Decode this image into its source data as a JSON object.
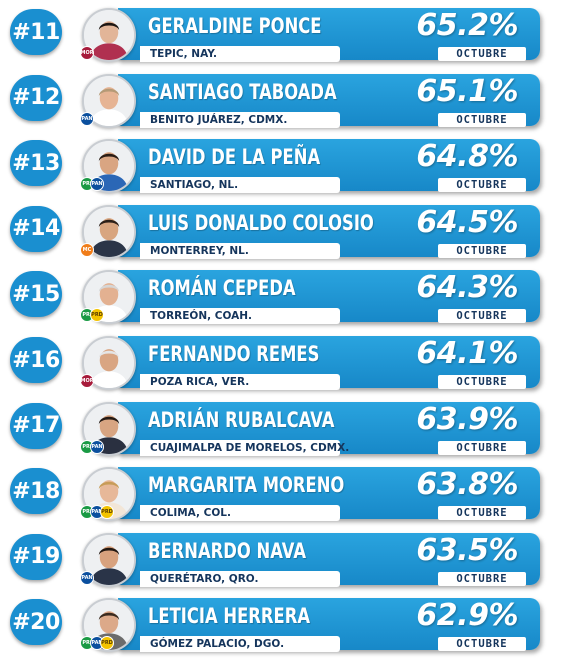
{
  "rows": [
    {
      "rank": "#11",
      "name": "GERALDINE PONCE",
      "city": "TEPIC, NAY.",
      "pct": "65.2%",
      "month": "OCTUBRE",
      "party_icons": [
        "morena-logo"
      ],
      "hair": "#1d1612",
      "shirt": "#b03050",
      "skin": "#e2b598"
    },
    {
      "rank": "#12",
      "name": "SANTIAGO TABOADA",
      "city": "BENITO JUÁREZ, CDMX.",
      "pct": "65.1%",
      "month": "OCTUBRE",
      "party_icons": [
        "pan-logo"
      ],
      "hair": "#b59a76",
      "shirt": "#ffffff",
      "skin": "#e6b494"
    },
    {
      "rank": "#13",
      "name": "DAVID DE LA PEÑA",
      "city": "SANTIAGO, NL.",
      "pct": "64.8%",
      "month": "OCTUBRE",
      "party_icons": [
        "pri-logo",
        "pan-logo"
      ],
      "hair": "#2a1c14",
      "shirt": "#2b67b6",
      "skin": "#d9a582"
    },
    {
      "rank": "#14",
      "name": "LUIS DONALDO COLOSIO",
      "city": "MONTERREY, NL.",
      "pct": "64.5%",
      "month": "OCTUBRE",
      "party_icons": [
        "mc-logo"
      ],
      "hair": "#2b1f18",
      "shirt": "#2b3548",
      "skin": "#d8a57f"
    },
    {
      "rank": "#15",
      "name": "ROMÁN CEPEDA",
      "city": "TORREÓN, COAH.",
      "pct": "64.3%",
      "month": "OCTUBRE",
      "party_icons": [
        "pri-logo",
        "prd-logo"
      ],
      "hair": "#d6d6d6",
      "shirt": "#ffffff",
      "skin": "#e3b191"
    },
    {
      "rank": "#16",
      "name": "FERNANDO REMES",
      "city": "POZA RICA, VER.",
      "pct": "64.1%",
      "month": "OCTUBRE",
      "party_icons": [
        "morena-logo"
      ],
      "hair": "#e5e5e5",
      "shirt": "#ffffff",
      "skin": "#d9a582"
    },
    {
      "rank": "#17",
      "name": "ADRIÁN RUBALCAVA",
      "city": "CUAJIMALPA DE MORELOS, CDMX.",
      "pct": "63.9%",
      "month": "OCTUBRE",
      "party_icons": [
        "pri-logo",
        "pan-logo"
      ],
      "hair": "#241a14",
      "shirt": "#2a3040",
      "skin": "#d8a582"
    },
    {
      "rank": "#18",
      "name": "MARGARITA MORENO",
      "city": "COLIMA, COL.",
      "pct": "63.8%",
      "month": "OCTUBRE",
      "party_icons": [
        "pri-logo",
        "pan-logo",
        "prd-logo"
      ],
      "hair": "#c79c58",
      "shirt": "#f2e6d8",
      "skin": "#e7b899"
    },
    {
      "rank": "#19",
      "name": "BERNARDO NAVA",
      "city": "QUERÉTARO, QRO.",
      "pct": "63.5%",
      "month": "OCTUBRE",
      "party_icons": [
        "pan-logo"
      ],
      "hair": "#221812",
      "shirt": "#2a3448",
      "skin": "#d8a27e"
    },
    {
      "rank": "#20",
      "name": "LETICIA HERRERA",
      "city": "GÓMEZ PALACIO, DGO.",
      "pct": "62.9%",
      "month": "OCTUBRE",
      "party_icons": [
        "pri-logo",
        "pan-logo",
        "prd-logo"
      ],
      "hair": "#3a2a1e",
      "shirt": "#6c6c6c",
      "skin": "#dca989"
    }
  ],
  "badge_text": {
    "pan": "PAN",
    "pri": "PRI",
    "prd": "PRD",
    "morena": "MOR",
    "mc": "MC"
  },
  "colors": {
    "accent": "#1a8fd0",
    "bar_top": "#2aa4df",
    "bar_bottom": "#1788c8",
    "label_text": "#15355c",
    "pan": "#0b4f9e",
    "pri": "#1a9a44",
    "prd": "#f3c300",
    "morena": "#a71b3b",
    "mc": "#f07d1a"
  }
}
